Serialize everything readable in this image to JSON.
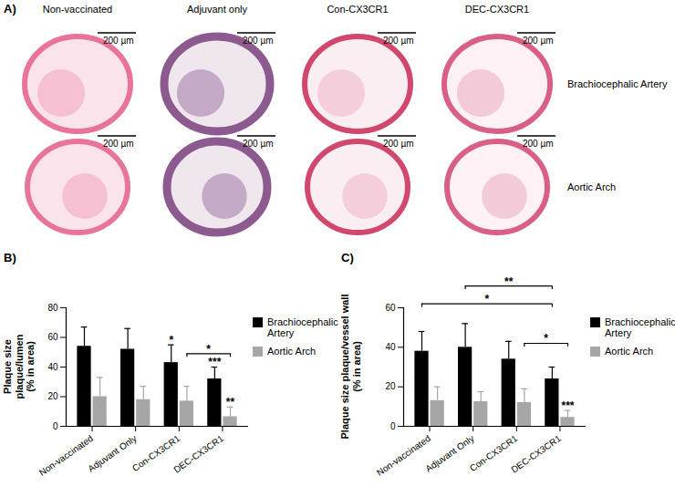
{
  "panel_a": {
    "label": "A)",
    "columns": [
      "Non-vaccinated",
      "Adjuvant only",
      "Con-CX3CR1",
      "DEC-CX3CR1"
    ],
    "rows": [
      "Brachiocephalic Artery",
      "Aortic Arch"
    ],
    "scale_bar_label": "200 µm"
  },
  "chart_data": [
    {
      "type": "bar",
      "title": "B)",
      "ylabel": "Plaque size\nplaque/lumen\n(% in area)",
      "categories": [
        "Non-vaccinated",
        "Adjuvant Only",
        "Con-CX3CR1",
        "DEC-CX3CR1"
      ],
      "series": [
        {
          "name": "Brachiocephalic Artery",
          "color": "#000000",
          "values": [
            54,
            52,
            43,
            32
          ],
          "errors": [
            13,
            14,
            12,
            8
          ]
        },
        {
          "name": "Aortic Arch",
          "color": "#a6a6a6",
          "values": [
            20,
            18,
            17,
            6.5
          ],
          "errors": [
            13,
            9,
            10,
            6.5
          ]
        }
      ],
      "ylim": [
        0,
        80
      ],
      "yticks": [
        0,
        20,
        40,
        60,
        80
      ],
      "legend": "right",
      "annotations": [
        {
          "text": "*",
          "category": "Con-CX3CR1",
          "series": "Brachiocephalic Artery"
        },
        {
          "text": "***",
          "category": "DEC-CX3CR1",
          "series": "Brachiocephalic Artery"
        },
        {
          "text": "**",
          "category": "DEC-CX3CR1",
          "series": "Aortic Arch"
        }
      ],
      "brackets": [
        {
          "text": "*",
          "from": {
            "category": "Con-CX3CR1",
            "series": "Aortic Arch"
          },
          "to": {
            "category": "DEC-CX3CR1",
            "series": "Aortic Arch"
          },
          "y": 49
        }
      ]
    },
    {
      "type": "bar",
      "title": "C)",
      "ylabel": "Plaque size plaque/vessel wall\n(% in area)",
      "categories": [
        "Non-vaccinated",
        "Adjuvant Only",
        "Con-CX3CR1",
        "DEC-CX3CR1"
      ],
      "series": [
        {
          "name": "Brachiocephalic Artery",
          "color": "#000000",
          "values": [
            38,
            40,
            34,
            24
          ],
          "errors": [
            10,
            12,
            9,
            6
          ]
        },
        {
          "name": "Aortic Arch",
          "color": "#a6a6a6",
          "values": [
            13,
            12.5,
            12,
            4.5
          ],
          "errors": [
            7,
            5,
            7,
            3.5
          ]
        }
      ],
      "ylim": [
        0,
        60
      ],
      "yticks": [
        0,
        20,
        40,
        60
      ],
      "legend": "right",
      "annotations": [
        {
          "text": "***",
          "category": "DEC-CX3CR1",
          "series": "Aortic Arch"
        }
      ],
      "brackets": [
        {
          "text": "**",
          "from": {
            "category": "Adjuvant Only",
            "series": "Brachiocephalic Artery"
          },
          "to": {
            "category": "DEC-CX3CR1",
            "series": "Brachiocephalic Artery"
          },
          "y": 71
        },
        {
          "text": "*",
          "from": {
            "category": "Non-vaccinated",
            "series": "Brachiocephalic Artery"
          },
          "to": {
            "category": "DEC-CX3CR1",
            "series": "Brachiocephalic Artery"
          },
          "y": 62
        },
        {
          "text": "*",
          "from": {
            "category": "Con-CX3CR1",
            "series": "Aortic Arch"
          },
          "to": {
            "category": "DEC-CX3CR1",
            "series": "Aortic Arch"
          },
          "y": 42
        }
      ]
    }
  ]
}
